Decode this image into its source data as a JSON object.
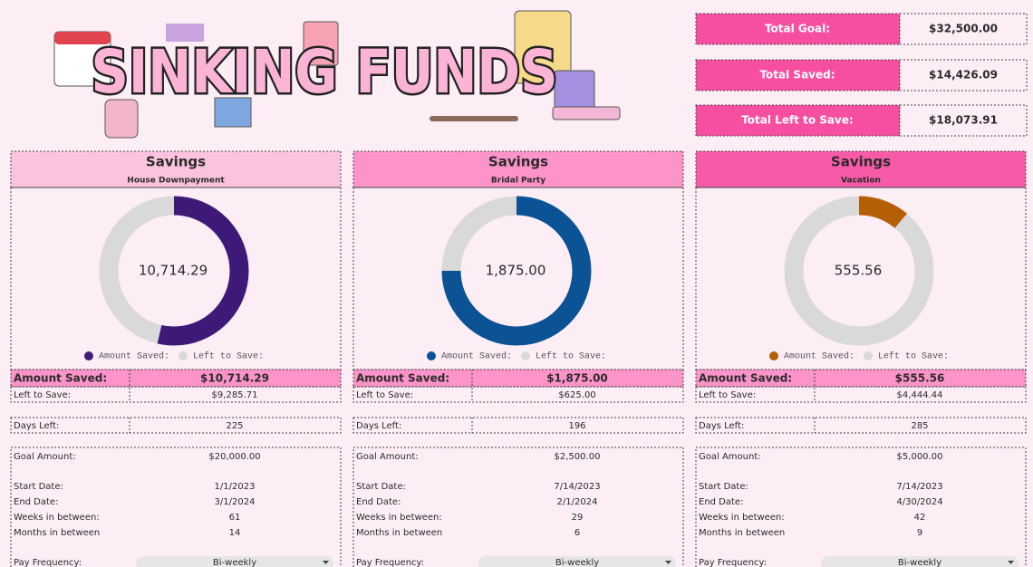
{
  "header": {
    "title": "SINKING FUNDS"
  },
  "totals": [
    {
      "label": "Total Goal:",
      "value": "$32,500.00"
    },
    {
      "label": "Total Saved:",
      "value": "$14,426.09"
    },
    {
      "label": "Total Left to Save:",
      "value": "$18,073.91"
    }
  ],
  "funds": [
    {
      "heading": "Savings",
      "name": "House Downpayment",
      "amount_saved_label": "Amount Saved:",
      "amount_saved": "$10,714.29",
      "left_label": "Left to Save:",
      "left": "$9,285.71",
      "days_left_label": "Days Left:",
      "days_left": "225",
      "goal_label": "Goal Amount:",
      "goal": "$20,000.00",
      "rows": [
        [
          "Start Date:",
          "1/1/2023"
        ],
        [
          "End Date:",
          "3/1/2024"
        ],
        [
          "Weeks in between:",
          "61"
        ],
        [
          "Months in between",
          "14"
        ]
      ],
      "pay_label": "Pay Frequency:",
      "pay": "Bi-weekly"
    },
    {
      "heading": "Savings",
      "name": "Bridal Party",
      "amount_saved_label": "Amount Saved:",
      "amount_saved": "$1,875.00",
      "left_label": "Left to Save:",
      "left": "$625.00",
      "days_left_label": "Days Left:",
      "days_left": "196",
      "goal_label": "Goal Amount:",
      "goal": "$2,500.00",
      "rows": [
        [
          "Start Date:",
          "7/14/2023"
        ],
        [
          "End Date:",
          "2/1/2024"
        ],
        [
          "Weeks in between:",
          "29"
        ],
        [
          "Months in between",
          "6"
        ]
      ],
      "pay_label": "Pay Frequency:",
      "pay": "Bi-weekly"
    },
    {
      "heading": "Savings",
      "name": "Vacation",
      "amount_saved_label": "Amount Saved:",
      "amount_saved": "$555.56",
      "left_label": "Left to Save:",
      "left": "$4,444.44",
      "days_left_label": "Days Left:",
      "days_left": "285",
      "goal_label": "Goal Amount:",
      "goal": "$5,000.00",
      "rows": [
        [
          "Start Date:",
          "7/14/2023"
        ],
        [
          "End Date:",
          "4/30/2024"
        ],
        [
          "Weeks in between:",
          "42"
        ],
        [
          "Months in between",
          "9"
        ]
      ],
      "pay_label": "Pay Frequency:",
      "pay": "Bi-weekly"
    }
  ],
  "chart_data": [
    {
      "type": "pie",
      "donut": true,
      "categories": [
        "Amount Saved:",
        "Left to Save:"
      ],
      "values": [
        10714.29,
        9285.71
      ],
      "colors": [
        "#3d1a78",
        "#d9d9d9"
      ],
      "center_label": "10,714.29"
    },
    {
      "type": "pie",
      "donut": true,
      "categories": [
        "Amount Saved:",
        "Left to Save:"
      ],
      "values": [
        1875,
        625
      ],
      "colors": [
        "#0b5394",
        "#d9d9d9"
      ],
      "center_label": "1,875.00"
    },
    {
      "type": "pie",
      "donut": true,
      "categories": [
        "Amount Saved:",
        "Left to Save:"
      ],
      "values": [
        555.56,
        4444.44
      ],
      "colors": [
        "#b45f06",
        "#d9d9d9"
      ],
      "center_label": "555.56"
    }
  ]
}
